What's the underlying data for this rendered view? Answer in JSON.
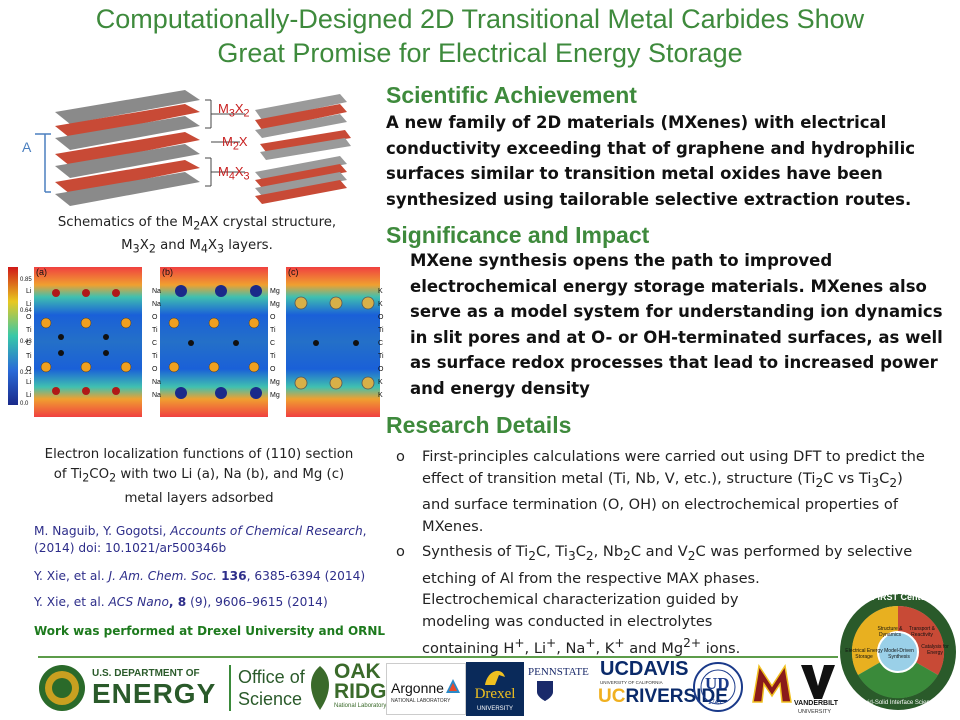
{
  "title": {
    "line1": "Computationally-Designed 2D Transitional Metal Carbides Show",
    "line2": "Great Promise for Electrical Energy Storage"
  },
  "sections": {
    "achievement": {
      "heading": "Scientific Achievement",
      "text": "A new family of 2D materials (MXenes) with electrical conductivity exceeding that of graphene and hydrophilic surfaces similar to transition metal oxides have been synthesized using tailorable selective extraction routes."
    },
    "significance": {
      "heading": "Significance and Impact",
      "text": "MXene synthesis opens the path to improved electrochemical energy storage materials. MXenes also serve as a model system for understanding ion dynamics in slit pores and at O- or OH-terminated surfaces, as well as surface redox processes that lead to increased power and energy density"
    },
    "details": {
      "heading": "Research Details",
      "bullet_mark": "o",
      "b1_pre": "First-principles calculations were carried out using DFT to predict the effect of transition metal (Ti, Nb, V, etc.), structure (Ti",
      "b1_s1": "2",
      "b1_mid1": "C vs Ti",
      "b1_s2": "3",
      "b1_mid2": "C",
      "b1_s3": "2",
      "b1_post": ") and surface termination (O, OH) on electrochemical properties of MXenes.",
      "b2_p1": "Synthesis of Ti",
      "b2_s1": "2",
      "b2_p2": "C, Ti",
      "b2_s2": "3",
      "b2_p3": "C",
      "b2_s3": "2",
      "b2_p4": ", Nb",
      "b2_s4": "2",
      "b2_p5": "C and V",
      "b2_s5": "2",
      "b2_p6": "C was performed by selective etching of Al from the respective MAX phases.",
      "b2_line2": "Electrochemical characterization guided by modeling was conducted in electrolytes containing H",
      "b2_sup1": "+",
      "b2_p7": ", Li",
      "b2_sup2": "+",
      "b2_p8": ", Na",
      "b2_sup3": "+",
      "b2_p9": ", K",
      "b2_sup4": "+",
      "b2_p10": " and Mg",
      "b2_sup5": "2+",
      "b2_p11": " ions."
    }
  },
  "figure1": {
    "labels": {
      "a_axis": "A",
      "m3x2": "M3X2",
      "m2x": "M2X",
      "m4x3": "M4X3",
      "m3x2_base": "M",
      "m3x2_sub1": "3",
      "m3x2_x": "X",
      "m3x2_sub2": "2",
      "m2x_base": "M",
      "m2x_sub": "2",
      "m2x_x": "X",
      "m4x3_base": "M",
      "m4x3_sub1": "4",
      "m4x3_x": "X",
      "m4x3_sub2": "3"
    },
    "caption_p1": "Schematics of the M",
    "caption_s1": "2",
    "caption_p2": "AX crystal structure,",
    "caption_p3": "M",
    "caption_s2": "3",
    "caption_p4": "X",
    "caption_s3": "2",
    "caption_p5": " and M",
    "caption_s4": "4",
    "caption_p6": "X",
    "caption_s5": "3",
    "caption_p7": " layers."
  },
  "figure2": {
    "colorbar": [
      "0.85",
      "0.64",
      "0.43",
      "0.21",
      "0.0"
    ],
    "panel_a": {
      "tag": "(a)",
      "labels": [
        "Li",
        "Li",
        "O",
        "Ti",
        "C",
        "Ti",
        "O",
        "Li",
        "Li"
      ]
    },
    "panel_b": {
      "tag": "(b)",
      "labels": [
        "Na",
        "Na",
        "O",
        "Ti",
        "C",
        "Ti",
        "O",
        "Na",
        "Na"
      ]
    },
    "panel_c": {
      "tag": "(c)",
      "labels": [
        "Mg",
        "Mg",
        "O",
        "Ti",
        "C",
        "Ti",
        "O",
        "Mg",
        "Mg"
      ]
    },
    "right_edge_labels": [
      "K",
      "K",
      "O",
      "Ti",
      "C",
      "Ti",
      "O",
      "K",
      "K"
    ],
    "caption_p1": "Electron localization functions of (110) section",
    "caption_p2": "of Ti",
    "caption_s1": "2",
    "caption_p3": "CO",
    "caption_s2": "2",
    "caption_p4": " with two Li (a), Na (b), and Mg (c)",
    "caption_p5": "metal layers adsorbed"
  },
  "references": {
    "r1_authors": "M. Naguib, Y. Gogotsi, ",
    "r1_journal": "Accounts of Chemical Research",
    "r1_rest": ", (2014) doi: 10.1021/ar500346b",
    "r2_authors": "Y. Xie, et al. ",
    "r2_journal": "J. Am. Chem. Soc.",
    "r2_vol": " 136",
    "r2_rest": ", 6385-6394 (2014)",
    "r3_authors": "Y. Xie, et al. ",
    "r3_journal": "ACS Nano",
    "r3_vol": ", 8",
    "r3_rest": " (9), 9606–9615 (2014)",
    "work_note": "Work was performed at Drexel University and ORNL"
  },
  "logos": {
    "doe_small": "U.S. DEPARTMENT OF",
    "doe_big": "ENERGY",
    "science1": "Office of",
    "science2": "Science",
    "oak": "OAK",
    "ridge": "RIDGE",
    "national_lab": "National Laboratory",
    "argonne": "Argonne",
    "argonne_sub": "NATIONAL LABORATORY",
    "drexel": "Drexel",
    "drexel_sub": "UNIVERSITY",
    "pennstate": "PENNSTATE",
    "ucdavis": "UCDAVIS",
    "ucr_uc": "UC",
    "ucr_riverside": "RIVERSIDE",
    "ucr_sub": "UNIVERSITY OF CALIFORNIA",
    "delaware": "UD",
    "delaware_year": "1743",
    "vanderbilt": "VANDERBILT",
    "vanderbilt_sub": "UNIVERSITY",
    "first_center": "FIRST Center",
    "efrc_labels": [
      "Electrical Energy Storage",
      "Catalysis for Energy",
      "Structure & Dynamics",
      "Transport & Reactivity",
      "Model-Driven Synthesis",
      "Fluid-Solid Interface Science"
    ]
  },
  "colors": {
    "green_title": "#3e8a3c",
    "ref_blue": "#2e2e8a",
    "work_note_green": "#1d7a1d"
  }
}
